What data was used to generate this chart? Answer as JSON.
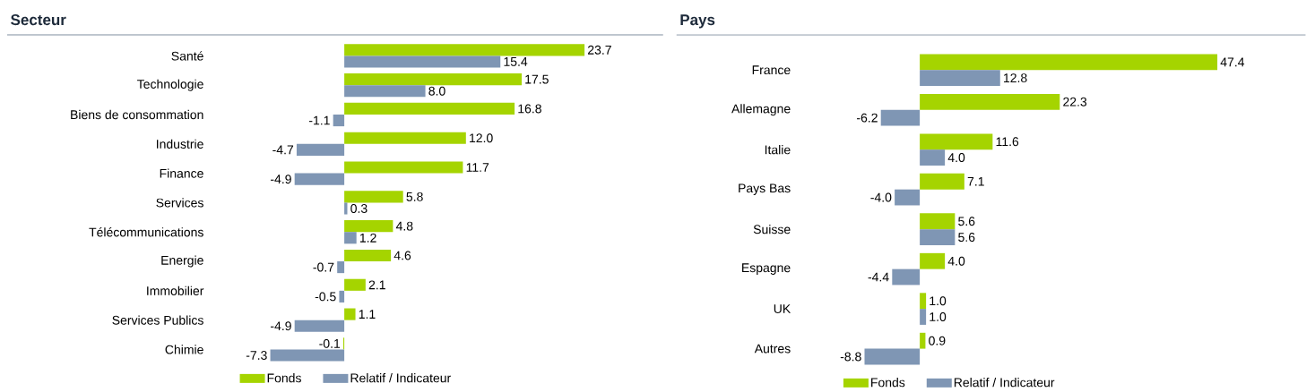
{
  "chart_data": [
    {
      "type": "bar",
      "orientation": "horizontal",
      "title": "Secteur",
      "legend": "bottom",
      "tick_labels": "y",
      "categories": [
        "Santé",
        "Technologie",
        "Biens de consommation",
        "Industrie",
        "Finance",
        "Services",
        "Télécommunications",
        "Energie",
        "Immobilier",
        "Services Publics",
        "Chimie"
      ],
      "series": [
        {
          "name": "Fonds",
          "color": "#a5d400",
          "values": [
            23.7,
            17.5,
            16.8,
            12.0,
            11.7,
            5.8,
            4.8,
            4.6,
            2.1,
            1.1,
            -0.1
          ],
          "value_labels": [
            "23.7",
            "17.5",
            "16.8",
            "12.0",
            "11.7",
            "5.8",
            "4.8",
            "4.6",
            "2.1",
            "1.1",
            "-0.1"
          ]
        },
        {
          "name": "Relatif / Indicateur",
          "color": "#7f96b4",
          "values": [
            15.4,
            8.0,
            -1.1,
            -4.7,
            -4.9,
            0.3,
            1.2,
            -0.7,
            -0.5,
            -4.9,
            -7.3
          ],
          "value_labels": [
            "15.4",
            "8.0",
            "-1.1",
            "-4.7",
            "-4.9",
            "0.3",
            "1.2",
            "-0.7",
            "-0.5",
            "-4.9",
            "-7.3"
          ]
        }
      ]
    },
    {
      "type": "bar",
      "orientation": "horizontal",
      "title": "Pays",
      "legend": "bottom",
      "tick_labels": "y",
      "categories": [
        "France",
        "Allemagne",
        "Italie",
        "Pays Bas",
        "Suisse",
        "Espagne",
        "UK",
        "Autres"
      ],
      "series": [
        {
          "name": "Fonds",
          "color": "#a5d400",
          "values": [
            47.4,
            22.3,
            11.6,
            7.1,
            5.6,
            4.0,
            1.0,
            0.9
          ],
          "value_labels": [
            "47.4",
            "22.3",
            "11.6",
            "7.1",
            "5.6",
            "4.0",
            "1.0",
            "0.9"
          ]
        },
        {
          "name": "Relatif / Indicateur",
          "color": "#7f96b4",
          "values": [
            12.8,
            -6.2,
            4.0,
            -4.0,
            5.6,
            -4.4,
            1.0,
            -8.8
          ],
          "value_labels": [
            "12.8",
            "-6.2",
            "4.0",
            "-4.0",
            "5.6",
            "-4.4",
            "1.0",
            "-8.8"
          ]
        }
      ]
    }
  ]
}
